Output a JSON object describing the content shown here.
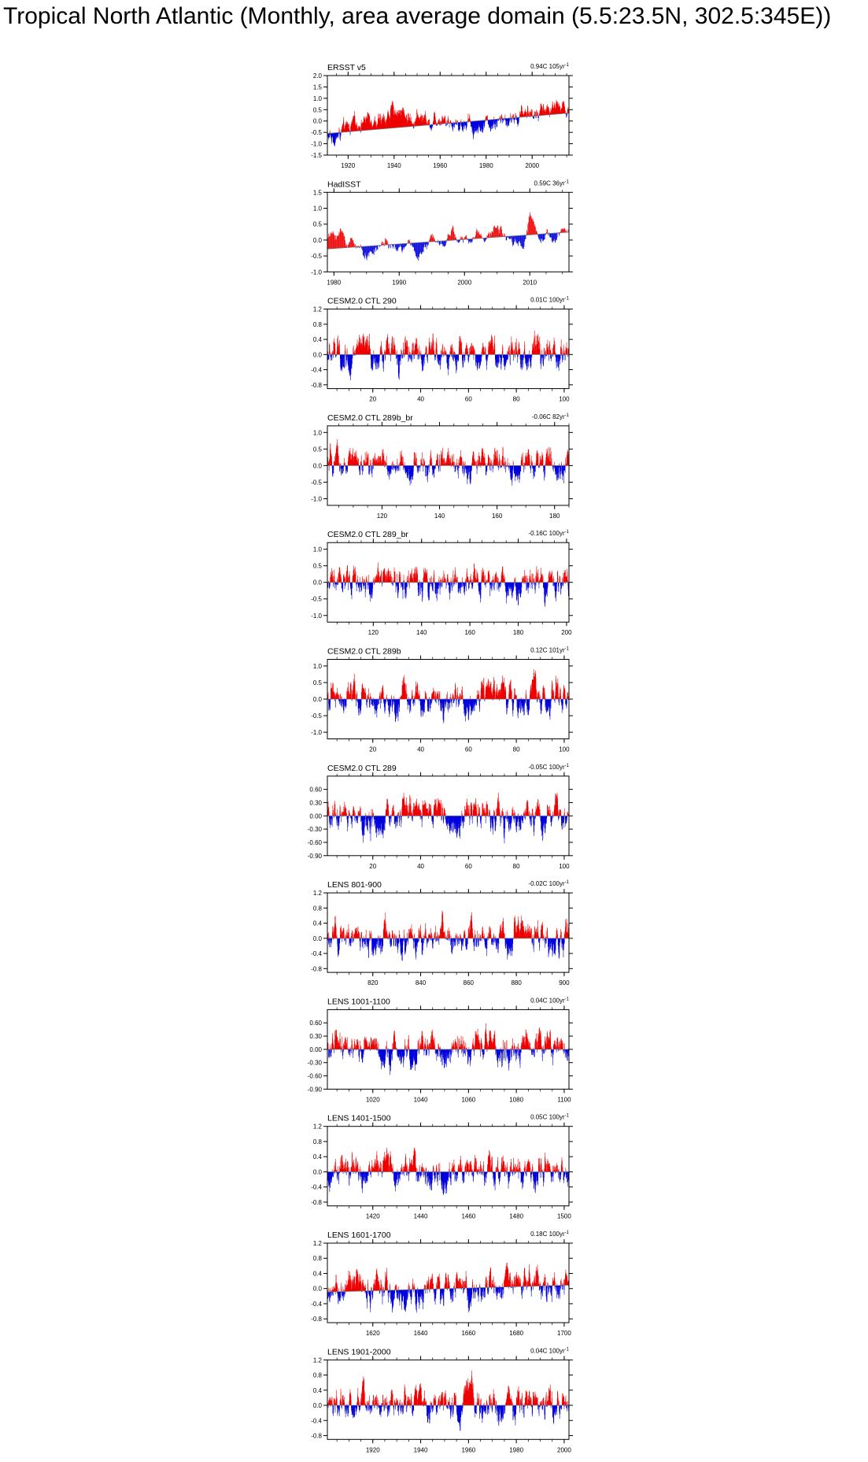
{
  "page_title": "Tropical North Atlantic (Monthly, area average domain (5.5:23.5N, 302.5:345E))",
  "colors": {
    "positive": "#ee0000",
    "negative": "#0000dd",
    "axis": "#000000"
  },
  "chart_data": [
    {
      "type": "bar",
      "title": "ERSST v5",
      "trend_label": "0.94C 105yr",
      "trend_superscript": "-1",
      "xlim": [
        1911,
        2016
      ],
      "ylim": [
        -1.5,
        2.0
      ],
      "yticks": [
        "2.0",
        "1.5",
        "1.0",
        "0.5",
        "0.0",
        "-0.5",
        "-1.0",
        "-1.5"
      ],
      "ytick_values": [
        2.0,
        1.5,
        1.0,
        0.5,
        0.0,
        -0.5,
        -1.0,
        -1.5
      ],
      "xticks": [
        1920,
        1940,
        1960,
        1980,
        2000
      ],
      "baseline": {
        "from": -0.55,
        "to": 0.35
      },
      "segments": [
        [
          1911,
          -0.75
        ],
        [
          1915,
          -0.7
        ],
        [
          1918,
          -0.45
        ],
        [
          1922,
          -0.2
        ],
        [
          1926,
          0.0
        ],
        [
          1930,
          0.25
        ],
        [
          1934,
          -0.15
        ],
        [
          1938,
          0.35
        ],
        [
          1941,
          0.55
        ],
        [
          1944,
          0.3
        ],
        [
          1948,
          0.05
        ],
        [
          1952,
          0.15
        ],
        [
          1956,
          0.0
        ],
        [
          1960,
          0.25
        ],
        [
          1964,
          0.05
        ],
        [
          1968,
          -0.15
        ],
        [
          1972,
          -0.05
        ],
        [
          1975,
          -0.35
        ],
        [
          1978,
          -0.2
        ],
        [
          1982,
          -0.05
        ],
        [
          1986,
          0.05
        ],
        [
          1990,
          -0.05
        ],
        [
          1994,
          0.15
        ],
        [
          1998,
          0.45
        ],
        [
          2001,
          0.25
        ],
        [
          2004,
          0.5
        ],
        [
          2007,
          0.55
        ],
        [
          2010,
          0.7
        ],
        [
          2013,
          0.6
        ],
        [
          2016,
          0.5
        ]
      ],
      "noise": 0.35
    },
    {
      "type": "bar",
      "title": "HadISST",
      "trend_label": "0.59C 36yr",
      "trend_superscript": "-1",
      "xlim": [
        1979,
        2016
      ],
      "ylim": [
        -1.0,
        1.5
      ],
      "yticks": [
        "1.5",
        "1.0",
        "0.5",
        "0.0",
        "-0.5",
        "-1.0"
      ],
      "ytick_values": [
        1.5,
        1.0,
        0.5,
        0.0,
        -0.5,
        -1.0
      ],
      "xticks": [
        1980,
        1990,
        2000,
        2010
      ],
      "baseline": {
        "from": -0.28,
        "to": 0.25
      },
      "segments": [
        [
          1979,
          0.1
        ],
        [
          1981,
          0.25
        ],
        [
          1982,
          -0.1
        ],
        [
          1983,
          0.05
        ],
        [
          1984,
          -0.35
        ],
        [
          1986,
          -0.4
        ],
        [
          1988,
          0.0
        ],
        [
          1989,
          -0.35
        ],
        [
          1991,
          -0.2
        ],
        [
          1993,
          -0.45
        ],
        [
          1995,
          -0.05
        ],
        [
          1996,
          0.25
        ],
        [
          1997,
          -0.05
        ],
        [
          1998,
          0.4
        ],
        [
          1999,
          0.1
        ],
        [
          2001,
          -0.1
        ],
        [
          2002,
          0.25
        ],
        [
          2004,
          0.1
        ],
        [
          2005,
          0.5
        ],
        [
          2006,
          0.2
        ],
        [
          2008,
          0.05
        ],
        [
          2009,
          -0.2
        ],
        [
          2010,
          0.9
        ],
        [
          2011,
          0.3
        ],
        [
          2012,
          0.2
        ],
        [
          2013,
          0.15
        ],
        [
          2014,
          -0.1
        ],
        [
          2015,
          0.35
        ],
        [
          2016,
          0.25
        ]
      ],
      "noise": 0.2
    },
    {
      "type": "bar",
      "title": "CESM2.0 CTL 290",
      "trend_label": "0.01C 100yr",
      "trend_superscript": "-1",
      "xlim": [
        1,
        102
      ],
      "ylim": [
        -0.9,
        1.2
      ],
      "yticks": [
        "1.2",
        "0.8",
        "0.4",
        "0.0",
        "-0.4",
        "-0.8"
      ],
      "ytick_values": [
        1.2,
        0.8,
        0.4,
        0.0,
        -0.4,
        -0.8
      ],
      "xticks": [
        20,
        40,
        60,
        80,
        100
      ],
      "baseline": {
        "from": 0.0,
        "to": 0.0
      },
      "segments": [
        [
          1,
          0.0
        ],
        [
          102,
          0.0
        ]
      ],
      "noise": 0.4
    },
    {
      "type": "bar",
      "title": "CESM2.0 CTL 289b_br",
      "trend_label": "-0.06C 82yr",
      "trend_superscript": "-1",
      "xlim": [
        101,
        185
      ],
      "ylim": [
        -1.2,
        1.2
      ],
      "yticks": [
        "1.0",
        "0.5",
        "0.0",
        "-0.5",
        "-1.0"
      ],
      "ytick_values": [
        1.0,
        0.5,
        0.0,
        -0.5,
        -1.0
      ],
      "xticks": [
        120,
        140,
        160,
        180
      ],
      "baseline": {
        "from": 0.0,
        "to": 0.0
      },
      "segments": [
        [
          101,
          0.0
        ],
        [
          185,
          0.0
        ]
      ],
      "noise": 0.45
    },
    {
      "type": "bar",
      "title": "CESM2.0 CTL 289_br",
      "trend_label": "-0.16C 100yr",
      "trend_superscript": "-1",
      "xlim": [
        101,
        201
      ],
      "ylim": [
        -1.2,
        1.2
      ],
      "yticks": [
        "1.0",
        "0.5",
        "0.0",
        "-0.5",
        "-1.0"
      ],
      "ytick_values": [
        1.0,
        0.5,
        0.0,
        -0.5,
        -1.0
      ],
      "xticks": [
        120,
        140,
        160,
        180,
        200
      ],
      "baseline": {
        "from": 0.0,
        "to": 0.0
      },
      "segments": [
        [
          101,
          0.0
        ],
        [
          201,
          0.0
        ]
      ],
      "noise": 0.45
    },
    {
      "type": "bar",
      "title": "CESM2.0 CTL 289b",
      "trend_label": "0.12C 101yr",
      "trend_superscript": "-1",
      "xlim": [
        1,
        102
      ],
      "ylim": [
        -1.2,
        1.2
      ],
      "yticks": [
        "1.0",
        "0.5",
        "0.0",
        "-0.5",
        "-1.0"
      ],
      "ytick_values": [
        1.0,
        0.5,
        0.0,
        -0.5,
        -1.0
      ],
      "xticks": [
        20,
        40,
        60,
        80,
        100
      ],
      "baseline": {
        "from": 0.0,
        "to": 0.0
      },
      "segments": [
        [
          1,
          0.0
        ],
        [
          102,
          0.0
        ]
      ],
      "noise": 0.45
    },
    {
      "type": "bar",
      "title": "CESM2.0 CTL 289",
      "trend_label": "-0.05C 100yr",
      "trend_superscript": "-1",
      "xlim": [
        1,
        102
      ],
      "ylim": [
        -0.9,
        0.9
      ],
      "yticks": [
        "0.60",
        "0.30",
        "0.00",
        "-0.30",
        "-0.60",
        "-0.90"
      ],
      "ytick_values": [
        0.6,
        0.3,
        0.0,
        -0.3,
        -0.6,
        -0.9
      ],
      "xticks": [
        20,
        40,
        60,
        80,
        100
      ],
      "baseline": {
        "from": 0.0,
        "to": 0.0
      },
      "segments": [
        [
          1,
          0.0
        ],
        [
          102,
          0.0
        ]
      ],
      "noise": 0.35
    },
    {
      "type": "bar",
      "title": "LENS 801-900",
      "trend_label": "-0.02C 100yr",
      "trend_superscript": "-1",
      "xlim": [
        801,
        902
      ],
      "ylim": [
        -0.9,
        1.2
      ],
      "yticks": [
        "1.2",
        "0.8",
        "0.4",
        "0.0",
        "-0.4",
        "-0.8"
      ],
      "ytick_values": [
        1.2,
        0.8,
        0.4,
        0.0,
        -0.4,
        -0.8
      ],
      "xticks": [
        820,
        840,
        860,
        880,
        900
      ],
      "baseline": {
        "from": 0.0,
        "to": 0.0
      },
      "segments": [
        [
          801,
          0.0
        ],
        [
          902,
          0.0
        ]
      ],
      "noise": 0.4
    },
    {
      "type": "bar",
      "title": "LENS 1001-1100",
      "trend_label": "0.04C 100yr",
      "trend_superscript": "-1",
      "xlim": [
        1001,
        1102
      ],
      "ylim": [
        -0.9,
        0.9
      ],
      "yticks": [
        "0.60",
        "0.30",
        "0.00",
        "-0.30",
        "-0.60",
        "-0.90"
      ],
      "ytick_values": [
        0.6,
        0.3,
        0.0,
        -0.3,
        -0.6,
        -0.9
      ],
      "xticks": [
        1020,
        1040,
        1060,
        1080,
        1100
      ],
      "baseline": {
        "from": 0.0,
        "to": 0.0
      },
      "segments": [
        [
          1001,
          0.0
        ],
        [
          1102,
          0.0
        ]
      ],
      "noise": 0.35
    },
    {
      "type": "bar",
      "title": "LENS 1401-1500",
      "trend_label": "0.05C 100yr",
      "trend_superscript": "-1",
      "xlim": [
        1401,
        1502
      ],
      "ylim": [
        -0.9,
        1.2
      ],
      "yticks": [
        "1.2",
        "0.8",
        "0.4",
        "0.0",
        "-0.4",
        "-0.8"
      ],
      "ytick_values": [
        1.2,
        0.8,
        0.4,
        0.0,
        -0.4,
        -0.8
      ],
      "xticks": [
        1420,
        1440,
        1460,
        1480,
        1500
      ],
      "baseline": {
        "from": 0.0,
        "to": 0.0
      },
      "segments": [
        [
          1401,
          0.0
        ],
        [
          1502,
          0.0
        ]
      ],
      "noise": 0.4
    },
    {
      "type": "bar",
      "title": "LENS 1601-1700",
      "trend_label": "0.18C 100yr",
      "trend_superscript": "-1",
      "xlim": [
        1601,
        1702
      ],
      "ylim": [
        -0.9,
        1.2
      ],
      "yticks": [
        "1.2",
        "0.8",
        "0.4",
        "0.0",
        "-0.4",
        "-0.8"
      ],
      "ytick_values": [
        1.2,
        0.8,
        0.4,
        0.0,
        -0.4,
        -0.8
      ],
      "xticks": [
        1620,
        1640,
        1660,
        1680,
        1700
      ],
      "baseline": {
        "from": -0.09,
        "to": 0.09
      },
      "segments": [
        [
          1601,
          -0.09
        ],
        [
          1702,
          0.09
        ]
      ],
      "noise": 0.4
    },
    {
      "type": "bar",
      "title": "LENS 1901-2000",
      "trend_label": "0.04C 100yr",
      "trend_superscript": "-1",
      "xlim": [
        1901,
        2002
      ],
      "ylim": [
        -0.9,
        1.2
      ],
      "yticks": [
        "1.2",
        "0.8",
        "0.4",
        "0.0",
        "-0.4",
        "-0.8"
      ],
      "ytick_values": [
        1.2,
        0.8,
        0.4,
        0.0,
        -0.4,
        -0.8
      ],
      "xticks": [
        1920,
        1940,
        1960,
        1980,
        2000
      ],
      "baseline": {
        "from": 0.0,
        "to": 0.0
      },
      "segments": [
        [
          1901,
          0.0
        ],
        [
          2002,
          0.0
        ]
      ],
      "noise": 0.4
    }
  ]
}
